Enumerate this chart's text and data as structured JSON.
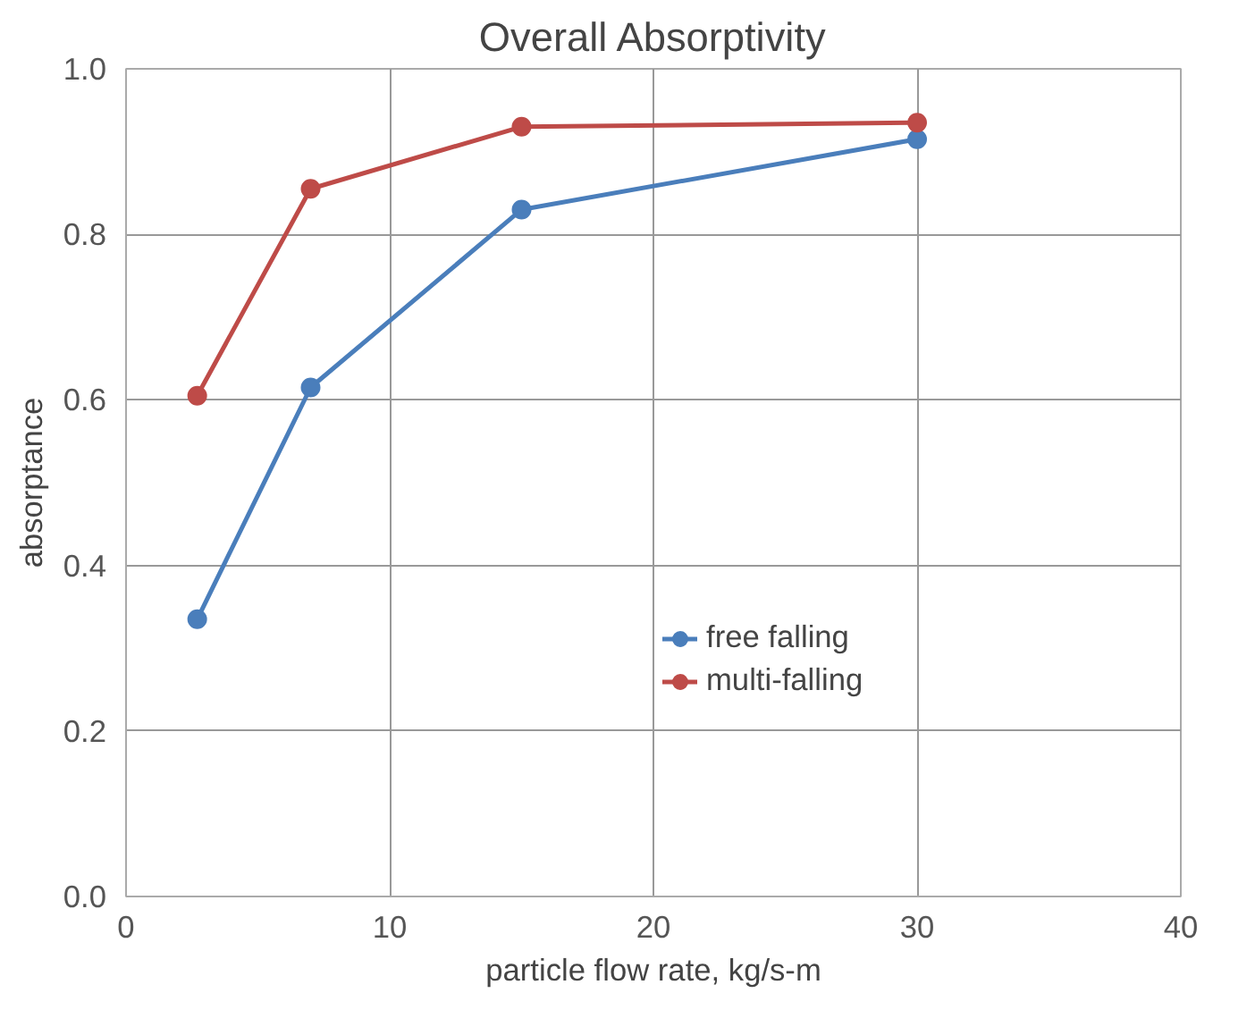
{
  "chart_data": {
    "type": "line",
    "title": "Overall Absorptivity",
    "xlabel": "particle flow rate, kg/s-m",
    "ylabel": "absorptance",
    "series": [
      {
        "name": "free falling",
        "color": "#4a7ebb",
        "x": [
          2.7,
          7,
          15,
          30
        ],
        "values": [
          0.335,
          0.615,
          0.83,
          0.915
        ]
      },
      {
        "name": "multi-falling",
        "color": "#be4b48",
        "x": [
          2.7,
          7,
          15,
          30
        ],
        "values": [
          0.605,
          0.855,
          0.93,
          0.935
        ]
      }
    ],
    "xlim": [
      0,
      40
    ],
    "xticks": [
      0,
      10,
      20,
      30,
      40
    ],
    "ylim": [
      0,
      1
    ],
    "yticks": [
      {
        "value": 0,
        "label": "0.0"
      },
      {
        "value": 0.2,
        "label": "0.2"
      },
      {
        "value": 0.4,
        "label": "0.4"
      },
      {
        "value": 0.6,
        "label": "0.6"
      },
      {
        "value": 0.8,
        "label": "0.8"
      },
      {
        "value": 1,
        "label": "1.0"
      }
    ],
    "grid": true,
    "legend": "right",
    "marker": "circle",
    "line_style": "solid"
  }
}
